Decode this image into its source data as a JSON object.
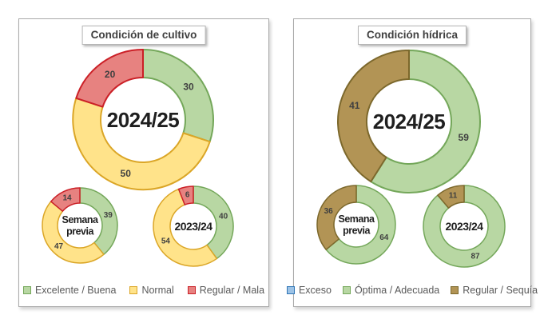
{
  "palette": {
    "green": {
      "fill": "#b8d7a3",
      "stroke": "#74a75a"
    },
    "yellow": {
      "fill": "#ffe38a",
      "stroke": "#dba627"
    },
    "red": {
      "fill": "#e78280",
      "stroke": "#cb2027"
    },
    "brown": {
      "fill": "#b29455",
      "stroke": "#7c682c"
    },
    "blue": {
      "fill": "#9dc3e6",
      "stroke": "#2e75b6"
    }
  },
  "chart_data": [
    {
      "type": "pie",
      "variant": "multi-donut",
      "title": "Condición de cultivo",
      "categories": [
        "Excelente / Buena",
        "Normal",
        "Regular / Mala"
      ],
      "colors": [
        "green",
        "yellow",
        "red"
      ],
      "rings": [
        {
          "name": "2024/25",
          "center_label": "2024/25",
          "values": [
            30,
            50,
            20
          ]
        },
        {
          "name": "Semana previa",
          "center_label": "Semana\nprevia",
          "values": [
            39,
            47,
            14
          ]
        },
        {
          "name": "2023/24",
          "center_label": "2023/24",
          "values": [
            40,
            54,
            6
          ]
        }
      ],
      "legend_position": "bottom"
    },
    {
      "type": "pie",
      "variant": "multi-donut",
      "title": "Condición hídrica",
      "categories": [
        "Exceso",
        "Óptima / Adecuada",
        "Regular / Sequía"
      ],
      "colors": [
        "blue",
        "green",
        "brown"
      ],
      "rings": [
        {
          "name": "2024/25",
          "center_label": "2024/25",
          "values": [
            0,
            59,
            41
          ]
        },
        {
          "name": "Semana previa",
          "center_label": "Semana\nprevia",
          "values": [
            0,
            64,
            36
          ]
        },
        {
          "name": "2023/24",
          "center_label": "2023/24",
          "values": [
            0,
            87,
            11
          ]
        }
      ],
      "legend_position": "bottom"
    }
  ]
}
